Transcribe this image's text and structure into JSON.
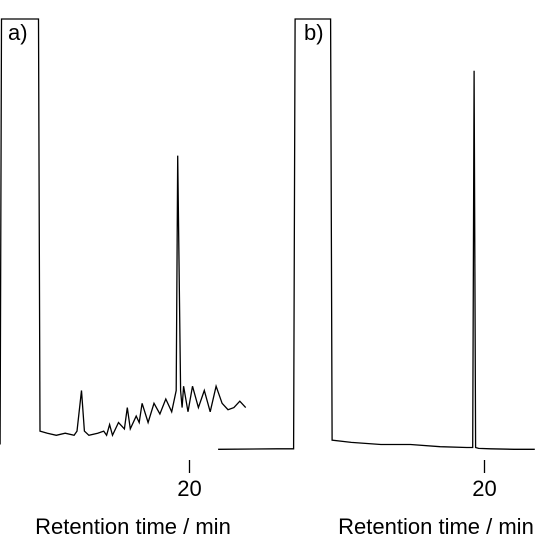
{
  "chart_data": [
    {
      "type": "line",
      "panel_label": "a)",
      "xlabel": "Retention time / min",
      "x_ticks": [
        20
      ],
      "x_tick_labels": [
        "20"
      ],
      "series": [
        {
          "x": [
            11.0,
            13.0,
            13.6,
            13.65,
            14.9,
            14.95,
            15.2,
            15.5,
            15.8,
            16.1,
            16.2,
            16.35,
            16.45,
            16.6,
            16.9,
            17.1,
            17.2,
            17.3,
            17.4,
            17.6,
            17.8,
            17.9,
            18.0,
            18.2,
            18.3,
            18.4,
            18.6,
            18.8,
            19.0,
            19.2,
            19.4,
            19.55,
            19.6,
            19.7,
            19.75,
            19.8,
            19.95,
            20.1,
            20.3,
            20.5,
            20.7,
            20.9,
            21.1,
            21.3,
            21.5,
            21.7,
            21.9
          ],
          "y": [
            0.4,
            0.5,
            0.5,
            100,
            100,
            3.5,
            3.0,
            2.5,
            3.0,
            2.5,
            3.5,
            13.0,
            3.5,
            2.5,
            3.0,
            3.5,
            2.5,
            5.0,
            2.5,
            5.5,
            4.0,
            9.0,
            4.0,
            7.0,
            5.5,
            10.0,
            5.5,
            10.0,
            7.5,
            11.0,
            8.0,
            13.0,
            68.0,
            13.0,
            9.0,
            14.0,
            8.0,
            14.0,
            9.0,
            13.0,
            8.0,
            14.0,
            10.0,
            8.5,
            9.0,
            10.5,
            9.0
          ]
        }
      ]
    },
    {
      "type": "line",
      "panel_label": "b)",
      "xlabel": "Retention time / min",
      "x_ticks": [
        20
      ],
      "x_tick_labels": [
        "20"
      ],
      "series": [
        {
          "x": [
            11.0,
            13.0,
            13.55,
            13.6,
            14.8,
            14.85,
            15.5,
            16.5,
            17.5,
            18.5,
            19.4,
            19.6,
            19.65,
            19.7,
            19.8,
            20.2,
            21.0,
            21.7
          ],
          "y": [
            0.4,
            0.5,
            0.5,
            100,
            100,
            2.5,
            2.0,
            1.5,
            1.5,
            1.0,
            0.8,
            0.8,
            88.0,
            0.8,
            0.6,
            0.5,
            0.4,
            0.4
          ]
        }
      ]
    }
  ]
}
